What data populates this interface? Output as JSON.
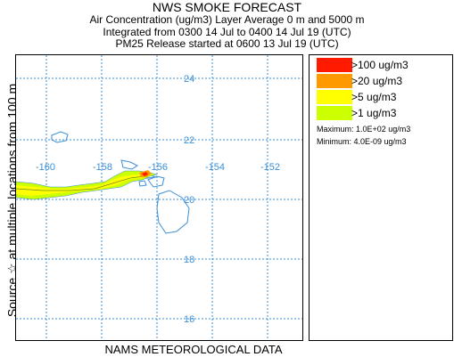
{
  "header": {
    "title": "NWS SMOKE FORECAST",
    "line2": "Air Concentration (ug/m3) Layer Average     0 m and  5000 m",
    "line3": "Integrated from 0300 14 Jul to 0400 14 Jul 19 (UTC)",
    "line4": "PM25 Release started at 0600 13 Jul 19 (UTC)"
  },
  "side_label": "Source ☆   at multiple locations    from   100 m",
  "map": {
    "latitude_labels": [
      "24",
      "22",
      "20",
      "18",
      "16"
    ],
    "longitude_labels": [
      "-160",
      "-158",
      "-156",
      "-154",
      "-152"
    ],
    "colors": {
      "grid": "#3a8fd6",
      "coast": "#3a8fd6"
    }
  },
  "legend": {
    "items": [
      {
        "label": ">100 ug/m3",
        "color": "#ff1a00"
      },
      {
        "label": ">20 ug/m3",
        "color": "#ff9900"
      },
      {
        "label": ">5 ug/m3",
        "color": "#ffff00"
      },
      {
        "label": ">1 ug/m3",
        "color": "#ccff00"
      }
    ],
    "maximum": "Maximum: 1.0E+02 ug/m3",
    "minimum": "Minimum: 4.0E-09 ug/m3"
  },
  "footer": "NAMS METEOROLOGICAL DATA"
}
